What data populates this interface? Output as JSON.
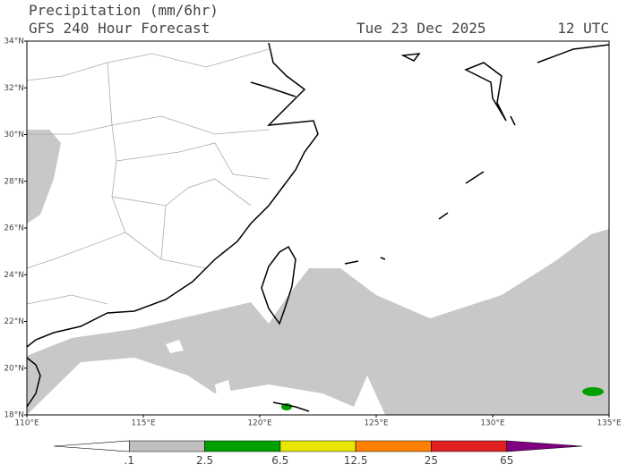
{
  "header": {
    "title": "Precipitation (mm/6hr)",
    "model": "GFS 240 Hour Forecast",
    "date": "Tue 23 Dec 2025",
    "time": "12 UTC"
  },
  "map": {
    "lat_ticks": [
      {
        "value": 18,
        "label": "18°N"
      },
      {
        "value": 20,
        "label": "20°N"
      },
      {
        "value": 22,
        "label": "22°N"
      },
      {
        "value": 24,
        "label": "24°N"
      },
      {
        "value": 26,
        "label": "26°N"
      },
      {
        "value": 28,
        "label": "28°N"
      },
      {
        "value": 30,
        "label": "30°N"
      },
      {
        "value": 32,
        "label": "32°N"
      },
      {
        "value": 34,
        "label": "34°N"
      }
    ],
    "lon_ticks": [
      {
        "value": 110,
        "label": "110°E"
      },
      {
        "value": 115,
        "label": "115°E"
      },
      {
        "value": 120,
        "label": "120°E"
      },
      {
        "value": 125,
        "label": "125°E"
      },
      {
        "value": 130,
        "label": "130°E"
      },
      {
        "value": 135,
        "label": "135°E"
      }
    ]
  },
  "colorbar": {
    "labels": [
      ".1",
      "2.5",
      "6.5",
      "12.5",
      "25",
      "65"
    ],
    "colors": [
      "#ffffff",
      "#c0c0c0",
      "#00a000",
      "#e6e600",
      "#ff8000",
      "#e02020",
      "#800080"
    ]
  }
}
